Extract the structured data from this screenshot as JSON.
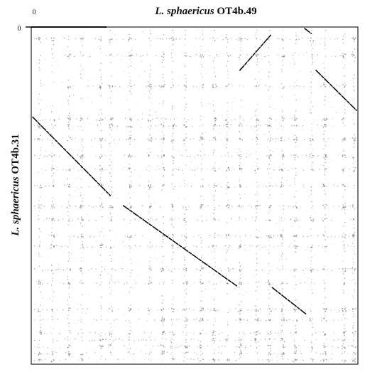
{
  "chart_data": {
    "type": "scatter",
    "title_italic": "L. sphaericus",
    "title_rest": " OT4b.49",
    "ylabel_italic": "L. sphaericus",
    "ylabel_rest": " OT4b.31",
    "x_origin_label": "0",
    "y_origin_label": "0",
    "xlim": [
      0,
      100
    ],
    "ylim": [
      0,
      100
    ],
    "colors": {
      "ink": "#111111",
      "noise": "#8a8a8a",
      "frame": "#222222"
    },
    "segments": [
      {
        "name": "diagonal-main-1",
        "points": [
          [
            0,
            26.5
          ],
          [
            24,
            50
          ]
        ]
      },
      {
        "name": "diagonal-main-2",
        "points": [
          [
            28,
            53
          ],
          [
            63,
            77
          ]
        ]
      },
      {
        "name": "diagonal-main-3",
        "points": [
          [
            74,
            77.5
          ],
          [
            84.5,
            85.5
          ]
        ]
      },
      {
        "name": "diagonal-inverted",
        "points": [
          [
            64,
            12.5
          ],
          [
            73.5,
            2
          ]
        ]
      },
      {
        "name": "diagonal-corner-1",
        "points": [
          [
            84,
            0
          ],
          [
            86,
            1.5
          ]
        ]
      },
      {
        "name": "diagonal-corner-2",
        "points": [
          [
            87.5,
            12.5
          ],
          [
            100,
            24.5
          ]
        ]
      }
    ],
    "vertical_bands_x": [
      2,
      6,
      11,
      15,
      21,
      24,
      30,
      36,
      40,
      43,
      47,
      52,
      56,
      60,
      64,
      69,
      73,
      77,
      81,
      86,
      90,
      96,
      99
    ],
    "horizontal_bands_y": [
      3,
      8,
      17,
      27,
      29,
      33,
      38,
      42,
      47,
      53,
      57,
      62,
      65,
      72,
      76,
      84,
      87,
      91,
      93,
      95,
      97,
      99
    ]
  }
}
